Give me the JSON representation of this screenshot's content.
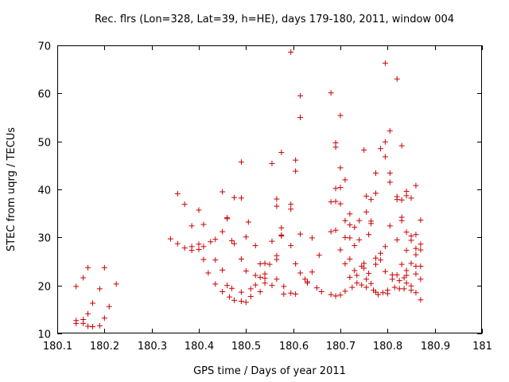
{
  "chart_data": {
    "type": "scatter",
    "title": "Rec. flrs (Lon=328, Lat=39, h=HE), days 179-180, 2011, window 004",
    "xlabel": "GPS time / Days of year 2011",
    "ylabel": "STEC from uqrg / TECUs",
    "xlim": [
      180.1,
      181
    ],
    "ylim": [
      10,
      70
    ],
    "xticks": [
      "180.1",
      "180.2",
      "180.3",
      "180.4",
      "180.5",
      "180.6",
      "180.7",
      "180.8",
      "180.9",
      "181"
    ],
    "yticks": [
      "10",
      "20",
      "30",
      "40",
      "50",
      "60",
      "70"
    ],
    "xtick_values": [
      180.1,
      180.2,
      180.3,
      180.4,
      180.5,
      180.6,
      180.7,
      180.8,
      180.9,
      181.0
    ],
    "ytick_values": [
      10,
      20,
      30,
      40,
      50,
      60,
      70
    ],
    "grid": false,
    "marker": "+",
    "color": "#cc0000",
    "series": [
      {
        "name": "STEC",
        "points": [
          [
            180.14,
            19.8
          ],
          [
            180.14,
            12.7
          ],
          [
            180.14,
            12.1
          ],
          [
            180.155,
            21.6
          ],
          [
            180.155,
            12.9
          ],
          [
            180.155,
            12.1
          ],
          [
            180.165,
            23.7
          ],
          [
            180.165,
            14.1
          ],
          [
            180.165,
            11.5
          ],
          [
            180.175,
            16.3
          ],
          [
            180.175,
            11.4
          ],
          [
            180.19,
            19.3
          ],
          [
            180.19,
            11.6
          ],
          [
            180.2,
            23.7
          ],
          [
            180.2,
            13.2
          ],
          [
            180.21,
            15.6
          ],
          [
            180.225,
            20.3
          ],
          [
            180.34,
            29.7
          ],
          [
            180.355,
            39.1
          ],
          [
            180.355,
            28.7
          ],
          [
            180.37,
            36.9
          ],
          [
            180.37,
            27.8
          ],
          [
            180.385,
            32.4
          ],
          [
            180.385,
            27.3
          ],
          [
            180.385,
            28.1
          ],
          [
            180.4,
            35.7
          ],
          [
            180.4,
            28.6
          ],
          [
            180.4,
            27.5
          ],
          [
            180.41,
            32.7
          ],
          [
            180.41,
            25.4
          ],
          [
            180.41,
            28.1
          ],
          [
            180.42,
            22.6
          ],
          [
            180.425,
            29.1
          ],
          [
            180.435,
            25.3
          ],
          [
            180.435,
            29.6
          ],
          [
            180.435,
            20.3
          ],
          [
            180.45,
            39.5
          ],
          [
            180.45,
            31.2
          ],
          [
            180.45,
            23.2
          ],
          [
            180.45,
            18.7
          ],
          [
            180.46,
            34.1
          ],
          [
            180.46,
            33.9
          ],
          [
            180.46,
            20.0
          ],
          [
            180.465,
            17.6
          ],
          [
            180.47,
            29.3
          ],
          [
            180.47,
            19.4
          ],
          [
            180.475,
            38.3
          ],
          [
            180.475,
            28.7
          ],
          [
            180.475,
            16.9
          ],
          [
            180.49,
            38.2
          ],
          [
            180.49,
            25.5
          ],
          [
            180.49,
            18.6
          ],
          [
            180.49,
            16.7
          ],
          [
            180.49,
            45.7
          ],
          [
            180.5,
            30.1
          ],
          [
            180.5,
            23.0
          ],
          [
            180.5,
            16.5
          ],
          [
            180.505,
            33.2
          ],
          [
            180.51,
            19.3
          ],
          [
            180.51,
            17.7
          ],
          [
            180.52,
            28.3
          ],
          [
            180.52,
            22.1
          ],
          [
            180.52,
            20.1
          ],
          [
            180.53,
            24.5
          ],
          [
            180.53,
            21.7
          ],
          [
            180.53,
            18.7
          ],
          [
            180.54,
            24.6
          ],
          [
            180.54,
            22.4
          ],
          [
            180.54,
            21.5
          ],
          [
            180.54,
            20.5
          ],
          [
            180.55,
            24.4
          ],
          [
            180.555,
            45.4
          ],
          [
            180.555,
            29.2
          ],
          [
            180.555,
            20.0
          ],
          [
            180.565,
            26.2
          ],
          [
            180.565,
            25.4
          ],
          [
            180.565,
            21.3
          ],
          [
            180.565,
            38.0
          ],
          [
            180.565,
            36.5
          ],
          [
            180.575,
            30.5
          ],
          [
            180.575,
            30.3
          ],
          [
            180.575,
            32.0
          ],
          [
            180.575,
            47.7
          ],
          [
            180.58,
            19.8
          ],
          [
            180.58,
            18.2
          ],
          [
            180.595,
            68.6
          ],
          [
            180.595,
            36.9
          ],
          [
            180.595,
            35.9
          ],
          [
            180.595,
            28.3
          ],
          [
            180.595,
            18.4
          ],
          [
            180.605,
            46.1
          ],
          [
            180.605,
            43.8
          ],
          [
            180.605,
            24.5
          ],
          [
            180.605,
            18.2
          ],
          [
            180.615,
            55.0
          ],
          [
            180.615,
            59.5
          ],
          [
            180.615,
            30.7
          ],
          [
            180.615,
            22.6
          ],
          [
            180.625,
            21.3
          ],
          [
            180.63,
            20.8
          ],
          [
            180.63,
            20.5
          ],
          [
            180.64,
            29.9
          ],
          [
            180.64,
            22.8
          ],
          [
            180.65,
            19.5
          ],
          [
            180.655,
            26.3
          ],
          [
            180.66,
            18.7
          ],
          [
            180.68,
            60.1
          ],
          [
            180.68,
            37.4
          ],
          [
            180.68,
            31.2
          ],
          [
            180.68,
            18.1
          ],
          [
            180.69,
            49.7
          ],
          [
            180.69,
            48.8
          ],
          [
            180.69,
            40.2
          ],
          [
            180.69,
            37.5
          ],
          [
            180.69,
            31.5
          ],
          [
            180.69,
            17.8
          ],
          [
            180.7,
            55.4
          ],
          [
            180.7,
            44.5
          ],
          [
            180.7,
            40.4
          ],
          [
            180.7,
            37.0
          ],
          [
            180.7,
            27.4
          ],
          [
            180.7,
            18.0
          ],
          [
            180.71,
            42.0
          ],
          [
            180.71,
            33.5
          ],
          [
            180.71,
            30.0
          ],
          [
            180.71,
            24.5
          ],
          [
            180.71,
            18.8
          ],
          [
            180.72,
            34.9
          ],
          [
            180.72,
            32.6
          ],
          [
            180.72,
            29.9
          ],
          [
            180.72,
            25.5
          ],
          [
            180.72,
            21.7
          ],
          [
            180.725,
            19.6
          ],
          [
            180.73,
            32.1
          ],
          [
            180.73,
            28.3
          ],
          [
            180.73,
            23.1
          ],
          [
            180.735,
            22.1
          ],
          [
            180.735,
            20.5
          ],
          [
            180.74,
            33.5
          ],
          [
            180.74,
            29.5
          ],
          [
            180.745,
            24.0
          ],
          [
            180.745,
            20.1
          ],
          [
            180.75,
            48.2
          ],
          [
            180.75,
            24.6
          ],
          [
            180.75,
            23.6
          ],
          [
            180.755,
            38.6
          ],
          [
            180.755,
            35.3
          ],
          [
            180.755,
            21.3
          ],
          [
            180.755,
            19.6
          ],
          [
            180.76,
            30.6
          ],
          [
            180.76,
            22.5
          ],
          [
            180.765,
            37.9
          ],
          [
            180.765,
            33.4
          ],
          [
            180.765,
            32.9
          ],
          [
            180.765,
            20.4
          ],
          [
            180.77,
            19.0
          ],
          [
            180.775,
            43.4
          ],
          [
            180.775,
            39.2
          ],
          [
            180.775,
            25.7
          ],
          [
            180.775,
            24.4
          ],
          [
            180.775,
            18.6
          ],
          [
            180.78,
            18.1
          ],
          [
            180.785,
            48.5
          ],
          [
            180.785,
            26.7
          ],
          [
            180.785,
            25.3
          ],
          [
            180.79,
            18.5
          ],
          [
            180.795,
            46.8
          ],
          [
            180.795,
            49.9
          ],
          [
            180.795,
            66.3
          ],
          [
            180.795,
            28.1
          ],
          [
            180.795,
            22.9
          ],
          [
            180.8,
            19.0
          ],
          [
            180.8,
            18.3
          ],
          [
            180.805,
            52.2
          ],
          [
            180.805,
            43.4
          ],
          [
            180.805,
            41.5
          ],
          [
            180.805,
            32.4
          ],
          [
            180.81,
            22.2
          ],
          [
            180.81,
            21.3
          ],
          [
            180.815,
            19.6
          ],
          [
            180.82,
            63.0
          ],
          [
            180.82,
            38.5
          ],
          [
            180.82,
            37.9
          ],
          [
            180.82,
            29.5
          ],
          [
            180.82,
            22.2
          ],
          [
            180.825,
            21.0
          ],
          [
            180.825,
            19.3
          ],
          [
            180.83,
            49.1
          ],
          [
            180.83,
            37.8
          ],
          [
            180.83,
            34.2
          ],
          [
            180.83,
            33.5
          ],
          [
            180.83,
            24.4
          ],
          [
            180.835,
            21.6
          ],
          [
            180.835,
            19.3
          ],
          [
            180.84,
            39.6
          ],
          [
            180.84,
            38.7
          ],
          [
            180.84,
            31.1
          ],
          [
            180.84,
            27.3
          ],
          [
            180.84,
            23.1
          ],
          [
            180.84,
            22.1
          ],
          [
            180.84,
            20.5
          ],
          [
            180.85,
            38.2
          ],
          [
            180.85,
            30.3
          ],
          [
            180.85,
            29.4
          ],
          [
            180.85,
            24.6
          ],
          [
            180.85,
            19.9
          ],
          [
            180.85,
            19.0
          ],
          [
            180.86,
            40.8
          ],
          [
            180.86,
            30.6
          ],
          [
            180.86,
            27.7
          ],
          [
            180.86,
            26.4
          ],
          [
            180.86,
            24.0
          ],
          [
            180.86,
            22.4
          ],
          [
            180.86,
            18.5
          ],
          [
            180.87,
            33.6
          ],
          [
            180.87,
            28.6
          ],
          [
            180.87,
            27.4
          ],
          [
            180.87,
            24.0
          ],
          [
            180.87,
            21.3
          ],
          [
            180.87,
            17.0
          ]
        ]
      }
    ]
  }
}
